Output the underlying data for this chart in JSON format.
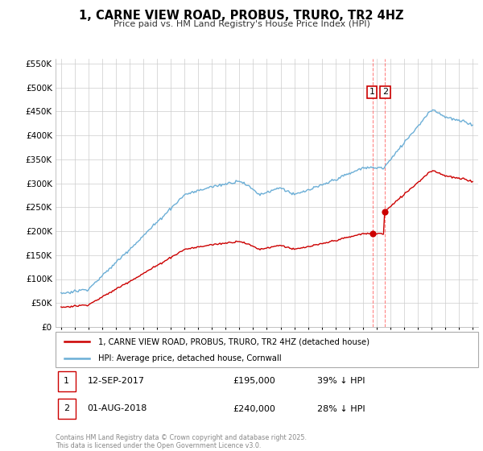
{
  "title": "1, CARNE VIEW ROAD, PROBUS, TRURO, TR2 4HZ",
  "subtitle": "Price paid vs. HM Land Registry's House Price Index (HPI)",
  "hpi_color": "#6baed6",
  "price_color": "#cc0000",
  "background_color": "#ffffff",
  "grid_color": "#cccccc",
  "ylim": [
    0,
    560000
  ],
  "yticks": [
    0,
    50000,
    100000,
    150000,
    200000,
    250000,
    300000,
    350000,
    400000,
    450000,
    500000,
    550000
  ],
  "sale1_year": 2017.7,
  "sale1_price": 195000,
  "sale2_year": 2018.58,
  "sale2_price": 240000,
  "legend_line1": "1, CARNE VIEW ROAD, PROBUS, TRURO, TR2 4HZ (detached house)",
  "legend_line2": "HPI: Average price, detached house, Cornwall",
  "table_row1": [
    "1",
    "12-SEP-2017",
    "£195,000",
    "39% ↓ HPI"
  ],
  "table_row2": [
    "2",
    "01-AUG-2018",
    "£240,000",
    "28% ↓ HPI"
  ],
  "footer": "Contains HM Land Registry data © Crown copyright and database right 2025.\nThis data is licensed under the Open Government Licence v3.0."
}
